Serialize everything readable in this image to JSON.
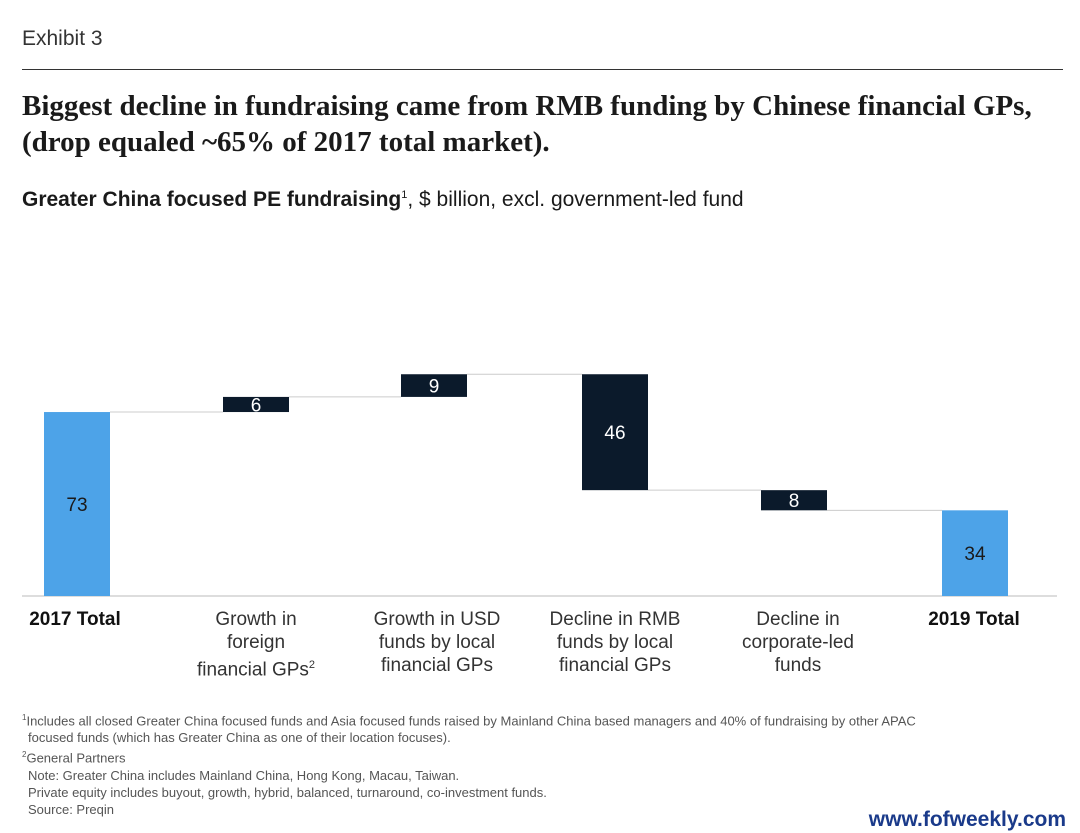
{
  "header": {
    "exhibit": "Exhibit 3",
    "headline": "Biggest decline in fundraising came from RMB funding by Chinese financial GPs, (drop equaled ~65% of 2017 total market)."
  },
  "subtitle": {
    "bold": "Greater China focused PE fundraising",
    "sup": "1",
    "rest": ", $ billion, excl. government-led fund"
  },
  "chart_data": {
    "type": "waterfall",
    "categories": [
      "2017 Total",
      "Growth in foreign financial GPs",
      "Growth in USD funds by local financial GPs",
      "Decline in RMB funds by local financial GPs",
      "Decline in corporate-led funds",
      "2019 Total"
    ],
    "values": [
      73,
      6,
      9,
      -46,
      -8,
      34
    ],
    "labels": [
      "73",
      "6",
      "9",
      "46",
      "8",
      "34"
    ],
    "kinds": [
      "total",
      "delta",
      "delta",
      "delta",
      "delta",
      "total"
    ],
    "colors": {
      "total": "#4da3e8",
      "delta": "#0b1a2b",
      "connector": "#cccccc",
      "axis": "#bbbbbb"
    },
    "ylim": [
      0,
      88
    ]
  },
  "categories_display": {
    "c1": "2017 Total",
    "c2a": "Growth in",
    "c2b": "foreign",
    "c2c": "financial GPs",
    "c2sup": "2",
    "c3a": "Growth in USD",
    "c3b": "funds by local",
    "c3c": "financial GPs",
    "c4a": "Decline in RMB",
    "c4b": "funds by local",
    "c4c": "financial GPs",
    "c5a": "Decline in",
    "c5b": "corporate-led",
    "c5c": "funds",
    "c6": "2019 Total"
  },
  "footnotes": {
    "f1_sup": "1",
    "f1": "Includes all closed Greater China focused funds and Asia focused funds raised by Mainland China based managers and 40% of  fundraising by other APAC",
    "f1b": "focused funds (which has Greater China as one of their location focuses).",
    "f2_sup": "2",
    "f2": "General Partners",
    "note1": "Note: Greater China includes Mainland China, Hong Kong, Macau, Taiwan.",
    "note2": "Private equity includes buyout, growth, hybrid, balanced, turnaround, co-investment funds.",
    "source": "Source: Preqin"
  },
  "watermark": "www.fofweekly.com"
}
